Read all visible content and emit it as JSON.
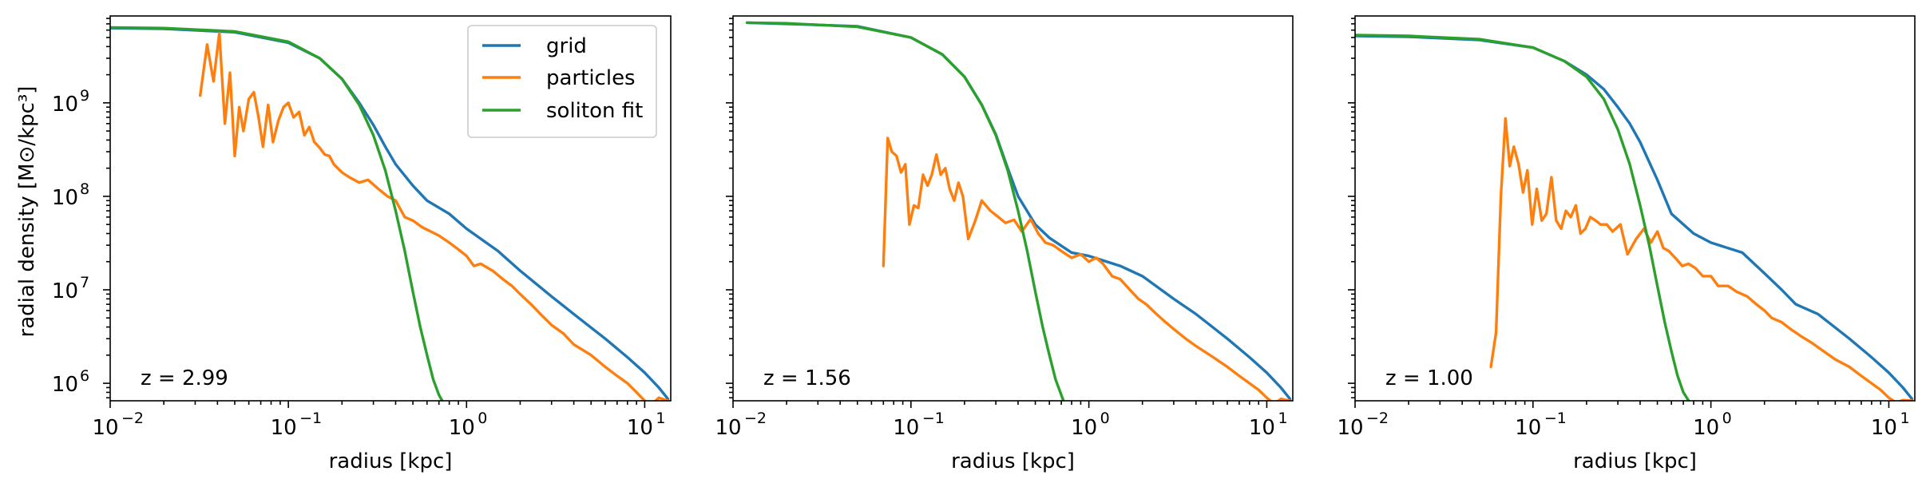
{
  "chart_data": [
    {
      "type": "line",
      "xlabel": "radius [kpc]",
      "ylabel": "radial density [M⊙/kpc³]",
      "xscale": "log",
      "yscale": "log",
      "xlim": [
        0.01,
        14
      ],
      "ylim": [
        650000,
        8500000000
      ],
      "x_tick_values": [
        0.01,
        0.1,
        1,
        10
      ],
      "x_tick_labels": [
        "10",
        "10",
        "10",
        "10"
      ],
      "x_tick_exponents": [
        "−2",
        "−1",
        "0",
        "1"
      ],
      "y_tick_values": [
        1000000,
        10000000,
        100000000,
        1000000000
      ],
      "y_tick_labels": [
        "10",
        "10",
        "10",
        "10"
      ],
      "y_tick_exponents": [
        "6",
        "7",
        "8",
        "9"
      ],
      "annotation": "z = 2.99",
      "legend": {
        "position": "upper right",
        "entries": [
          "grid",
          "particles",
          "soliton fit"
        ]
      },
      "series": [
        {
          "name": "grid",
          "color": "#1f77b4",
          "x": [
            0.01,
            0.02,
            0.05,
            0.1,
            0.15,
            0.2,
            0.25,
            0.3,
            0.35,
            0.4,
            0.5,
            0.6,
            0.8,
            1.0,
            1.5,
            2,
            3,
            4,
            6,
            8,
            10,
            12,
            13.5
          ],
          "y": [
            6300000000.0,
            6200000000.0,
            5700000000.0,
            4400000000.0,
            3000000000.0,
            1800000000.0,
            1000000000.0,
            580000000.0,
            340000000.0,
            220000000.0,
            130000000.0,
            90000000.0,
            65000000.0,
            45000000.0,
            26000000.0,
            16000000.0,
            8500000.0,
            5500000.0,
            3000000.0,
            1900000.0,
            1300000.0,
            900000.0,
            680000.0
          ]
        },
        {
          "name": "particles",
          "color": "#ff7f0e",
          "x": [
            0.032,
            0.035,
            0.038,
            0.041,
            0.044,
            0.047,
            0.05,
            0.053,
            0.056,
            0.06,
            0.064,
            0.068,
            0.072,
            0.077,
            0.082,
            0.088,
            0.094,
            0.1,
            0.107,
            0.115,
            0.123,
            0.131,
            0.14,
            0.15,
            0.16,
            0.17,
            0.18,
            0.2,
            0.22,
            0.25,
            0.28,
            0.32,
            0.36,
            0.4,
            0.45,
            0.5,
            0.56,
            0.63,
            0.7,
            0.8,
            0.9,
            1.0,
            1.1,
            1.2,
            1.4,
            1.6,
            1.8,
            2,
            2.3,
            2.6,
            3,
            3.5,
            4,
            5,
            6,
            7,
            8,
            9,
            10,
            11,
            12,
            13.5
          ],
          "y": [
            1200000000.0,
            4200000000.0,
            1700000000.0,
            5600000000.0,
            600000000.0,
            2100000000.0,
            270000000.0,
            900000000.0,
            500000000.0,
            1100000000.0,
            1300000000.0,
            700000000.0,
            340000000.0,
            950000000.0,
            380000000.0,
            650000000.0,
            900000000.0,
            1000000000.0,
            700000000.0,
            800000000.0,
            450000000.0,
            550000000.0,
            380000000.0,
            330000000.0,
            280000000.0,
            270000000.0,
            220000000.0,
            180000000.0,
            160000000.0,
            140000000.0,
            150000000.0,
            120000000.0,
            100000000.0,
            90000000.0,
            60000000.0,
            55000000.0,
            47000000.0,
            42000000.0,
            38000000.0,
            32000000.0,
            27000000.0,
            23000000.0,
            18000000.0,
            19000000.0,
            16000000.0,
            13000000.0,
            11000000.0,
            9000000.0,
            7000000.0,
            5500000.0,
            4200000.0,
            3400000.0,
            2600000.0,
            2000000.0,
            1500000.0,
            1200000.0,
            1000000.0,
            800000.0,
            650000.0,
            600000.0,
            700000.0,
            650000.0
          ]
        },
        {
          "name": "soliton fit",
          "color": "#2ca02c",
          "x": [
            0.01,
            0.02,
            0.05,
            0.1,
            0.15,
            0.2,
            0.25,
            0.3,
            0.35,
            0.4,
            0.45,
            0.5,
            0.55,
            0.6,
            0.65,
            0.7,
            0.73
          ],
          "y": [
            6400000000.0,
            6300000000.0,
            5800000000.0,
            4500000000.0,
            3000000000.0,
            1800000000.0,
            950000000.0,
            450000000.0,
            190000000.0,
            70000000.0,
            26000000.0,
            9500000.0,
            4000000.0,
            2000000.0,
            1100000.0,
            750000.0,
            650000.0
          ]
        }
      ]
    },
    {
      "type": "line",
      "xlabel": "radius [kpc]",
      "xscale": "log",
      "yscale": "log",
      "xlim": [
        0.01,
        14
      ],
      "ylim": [
        650000,
        8500000000
      ],
      "x_tick_values": [
        0.01,
        0.1,
        1,
        10
      ],
      "x_tick_labels": [
        "10",
        "10",
        "10",
        "10"
      ],
      "x_tick_exponents": [
        "−2",
        "−1",
        "0",
        "1"
      ],
      "annotation": "z = 1.56",
      "series": [
        {
          "name": "grid",
          "color": "#1f77b4",
          "x": [
            0.012,
            0.02,
            0.05,
            0.1,
            0.15,
            0.2,
            0.25,
            0.3,
            0.35,
            0.4,
            0.5,
            0.6,
            0.8,
            1.0,
            1.5,
            2,
            3,
            4,
            6,
            8,
            10,
            12,
            13.5
          ],
          "y": [
            7200000000.0,
            7000000000.0,
            6600000000.0,
            5000000000.0,
            3300000000.0,
            1900000000.0,
            950000000.0,
            460000000.0,
            200000000.0,
            100000000.0,
            50000000.0,
            36000000.0,
            25000000.0,
            23000000.0,
            18000000.0,
            14000000.0,
            8000000.0,
            5500000.0,
            3000000.0,
            1900000.0,
            1300000.0,
            900000.0,
            680000.0
          ]
        },
        {
          "name": "particles",
          "color": "#ff7f0e",
          "x": [
            0.07,
            0.074,
            0.078,
            0.083,
            0.088,
            0.093,
            0.098,
            0.104,
            0.11,
            0.117,
            0.124,
            0.131,
            0.139,
            0.147,
            0.156,
            0.165,
            0.175,
            0.185,
            0.196,
            0.21,
            0.23,
            0.25,
            0.28,
            0.31,
            0.34,
            0.38,
            0.42,
            0.47,
            0.52,
            0.57,
            0.63,
            0.7,
            0.8,
            0.9,
            1.0,
            1.1,
            1.2,
            1.35,
            1.5,
            1.7,
            1.9,
            2.1,
            2.4,
            2.7,
            3,
            3.5,
            4,
            5,
            6,
            7,
            8,
            9,
            10,
            11,
            12,
            13.5
          ],
          "y": [
            18000000.0,
            420000000.0,
            300000000.0,
            270000000.0,
            180000000.0,
            220000000.0,
            50000000.0,
            80000000.0,
            75000000.0,
            170000000.0,
            130000000.0,
            170000000.0,
            280000000.0,
            170000000.0,
            200000000.0,
            120000000.0,
            90000000.0,
            140000000.0,
            100000000.0,
            35000000.0,
            55000000.0,
            90000000.0,
            70000000.0,
            60000000.0,
            52000000.0,
            56000000.0,
            42000000.0,
            57000000.0,
            40000000.0,
            32000000.0,
            30000000.0,
            26000000.0,
            22000000.0,
            24000000.0,
            20000000.0,
            22000000.0,
            19000000.0,
            14000000.0,
            13000000.0,
            10000000.0,
            8000000.0,
            7000000.0,
            5500000.0,
            4500000.0,
            3800000.0,
            3000000.0,
            2500000.0,
            1900000.0,
            1500000.0,
            1200000.0,
            1000000.0,
            850000.0,
            700000.0,
            600000.0,
            680000.0,
            650000.0
          ]
        },
        {
          "name": "soliton fit",
          "color": "#2ca02c",
          "x": [
            0.012,
            0.02,
            0.05,
            0.1,
            0.15,
            0.2,
            0.25,
            0.3,
            0.35,
            0.4,
            0.45,
            0.5,
            0.55,
            0.6,
            0.65,
            0.7,
            0.72
          ],
          "y": [
            7200000000.0,
            7100000000.0,
            6500000000.0,
            5000000000.0,
            3300000000.0,
            1900000000.0,
            950000000.0,
            450000000.0,
            190000000.0,
            70000000.0,
            26000000.0,
            9500000.0,
            4000000.0,
            2000000.0,
            1100000.0,
            750000.0,
            650000.0
          ]
        }
      ]
    },
    {
      "type": "line",
      "xlabel": "radius [kpc]",
      "xscale": "log",
      "yscale": "log",
      "xlim": [
        0.01,
        14
      ],
      "ylim": [
        650000,
        8500000000
      ],
      "x_tick_values": [
        0.01,
        0.1,
        1,
        10
      ],
      "x_tick_labels": [
        "10",
        "10",
        "10",
        "10"
      ],
      "x_tick_exponents": [
        "−2",
        "−1",
        "0",
        "1"
      ],
      "annotation": "z = 1.00",
      "series": [
        {
          "name": "grid",
          "color": "#1f77b4",
          "x": [
            0.01,
            0.02,
            0.05,
            0.1,
            0.15,
            0.2,
            0.25,
            0.3,
            0.35,
            0.4,
            0.5,
            0.6,
            0.8,
            1.0,
            1.5,
            2,
            2.5,
            3,
            4,
            6,
            8,
            10,
            12,
            13.5
          ],
          "y": [
            5200000000.0,
            5100000000.0,
            4700000000.0,
            3900000000.0,
            2800000000.0,
            2000000000.0,
            1400000000.0,
            900000000.0,
            600000000.0,
            380000000.0,
            150000000.0,
            65000000.0,
            40000000.0,
            32000000.0,
            25000000.0,
            15000000.0,
            10000000.0,
            7000000.0,
            5500000.0,
            3000000.0,
            1900000.0,
            1300000.0,
            900000.0,
            680000.0
          ]
        },
        {
          "name": "particles",
          "color": "#ff7f0e",
          "x": [
            0.058,
            0.062,
            0.066,
            0.07,
            0.074,
            0.078,
            0.083,
            0.088,
            0.093,
            0.099,
            0.105,
            0.112,
            0.119,
            0.127,
            0.135,
            0.144,
            0.153,
            0.163,
            0.174,
            0.185,
            0.197,
            0.21,
            0.225,
            0.24,
            0.26,
            0.28,
            0.31,
            0.34,
            0.38,
            0.42,
            0.46,
            0.5,
            0.54,
            0.58,
            0.63,
            0.69,
            0.75,
            0.82,
            0.9,
            1.0,
            1.1,
            1.25,
            1.4,
            1.6,
            1.8,
            2.0,
            2.2,
            2.5,
            2.8,
            3.2,
            3.7,
            4.3,
            5,
            6,
            7,
            8,
            9,
            10,
            11,
            12,
            13.5
          ],
          "y": [
            1500000.0,
            3500000.0,
            100000000.0,
            680000000.0,
            210000000.0,
            340000000.0,
            220000000.0,
            110000000.0,
            190000000.0,
            50000000.0,
            120000000.0,
            55000000.0,
            65000000.0,
            160000000.0,
            55000000.0,
            45000000.0,
            70000000.0,
            60000000.0,
            80000000.0,
            40000000.0,
            45000000.0,
            60000000.0,
            55000000.0,
            50000000.0,
            50000000.0,
            42000000.0,
            50000000.0,
            24000000.0,
            35000000.0,
            45000000.0,
            32000000.0,
            42000000.0,
            28000000.0,
            26000000.0,
            22000000.0,
            18000000.0,
            19000000.0,
            17000000.0,
            14000000.0,
            14000000.0,
            11000000.0,
            11000000.0,
            9500000.0,
            8500000.0,
            7000000.0,
            6000000.0,
            5000000.0,
            4500000.0,
            3800000.0,
            3200000.0,
            2700000.0,
            2200000.0,
            1800000.0,
            1500000.0,
            1200000.0,
            1000000.0,
            850000.0,
            700000.0,
            620000.0,
            660000.0,
            650000.0
          ]
        },
        {
          "name": "soliton fit",
          "color": "#2ca02c",
          "x": [
            0.01,
            0.02,
            0.05,
            0.1,
            0.15,
            0.2,
            0.25,
            0.3,
            0.35,
            0.4,
            0.45,
            0.5,
            0.55,
            0.6,
            0.65,
            0.7,
            0.75
          ],
          "y": [
            5300000000.0,
            5200000000.0,
            4800000000.0,
            3900000000.0,
            2800000000.0,
            1900000000.0,
            1100000000.0,
            520000000.0,
            220000000.0,
            80000000.0,
            30000000.0,
            11000000.0,
            4500000.0,
            2200000.0,
            1200000.0,
            800000.0,
            650000.0
          ]
        }
      ]
    }
  ]
}
